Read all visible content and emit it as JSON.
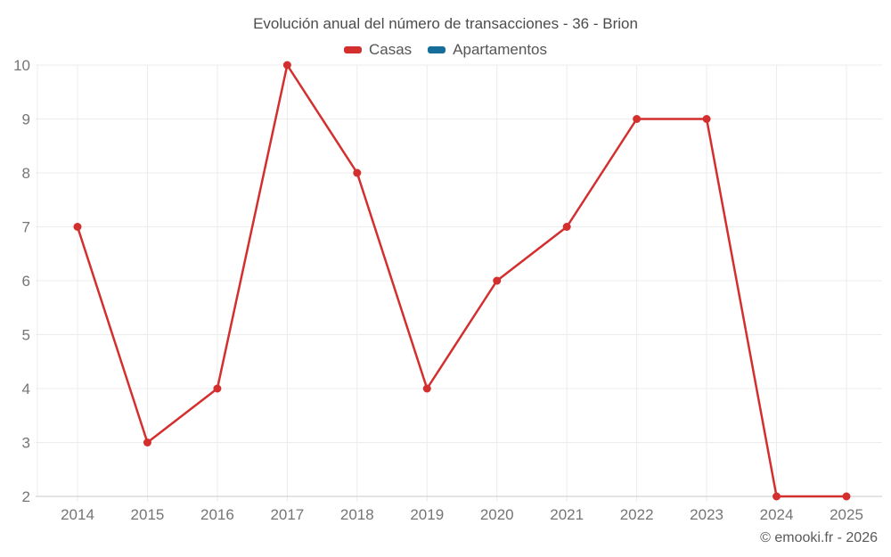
{
  "chart_data": {
    "type": "line",
    "title": "Evolución anual del número de transacciones - 36 - Brion",
    "categories": [
      "2014",
      "2015",
      "2016",
      "2017",
      "2018",
      "2019",
      "2020",
      "2021",
      "2022",
      "2023",
      "2024",
      "2025"
    ],
    "series": [
      {
        "name": "Casas",
        "color": "#d32f2e",
        "values": [
          7,
          3,
          4,
          10,
          8,
          4,
          6,
          7,
          9,
          9,
          2,
          2
        ]
      },
      {
        "name": "Apartamentos",
        "color": "#166d99",
        "values": []
      }
    ],
    "xlabel": "",
    "ylabel": "",
    "ylim": [
      2,
      10
    ],
    "ytick_step": 1,
    "grid": true,
    "legend_position": "top",
    "grid_color": "#ececec",
    "axis_color": "#c9c9c9",
    "tick_label_color": "#757575"
  },
  "footer": {
    "copyright": "© emooki.fr - 2026"
  }
}
